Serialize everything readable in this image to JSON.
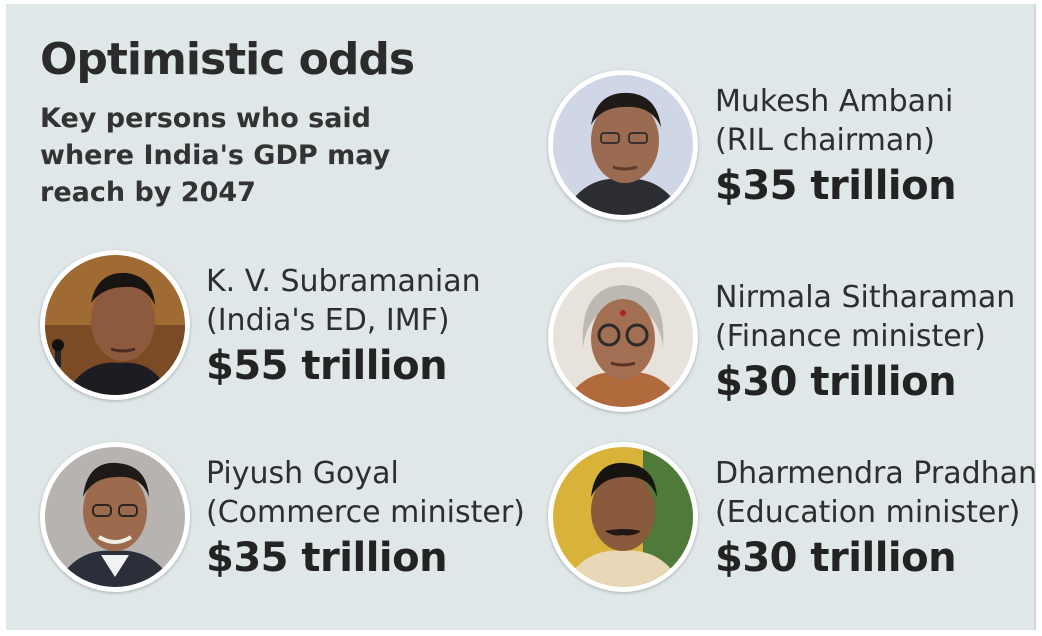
{
  "header": {
    "title": "Optimistic odds",
    "subtitle": "Key persons who said where India's GDP may reach by 2047"
  },
  "people": [
    {
      "name": "Mukesh Ambani",
      "role": "(RIL chairman)",
      "amount": "$35 trillion"
    },
    {
      "name": "K. V. Subramanian",
      "role": "(India's ED, IMF)",
      "amount": "$55 trillion"
    },
    {
      "name": "Nirmala Sitharaman",
      "role": "(Finance minister)",
      "amount": "$30 trillion"
    },
    {
      "name": "Piyush Goyal",
      "role": "(Commerce minister)",
      "amount": "$35 trillion"
    },
    {
      "name": "Dharmendra Pradhan",
      "role": "(Education minister)",
      "amount": "$30 trillion"
    }
  ],
  "colors": {
    "background": "#dfe7e9",
    "text": "#2b2b2b"
  }
}
